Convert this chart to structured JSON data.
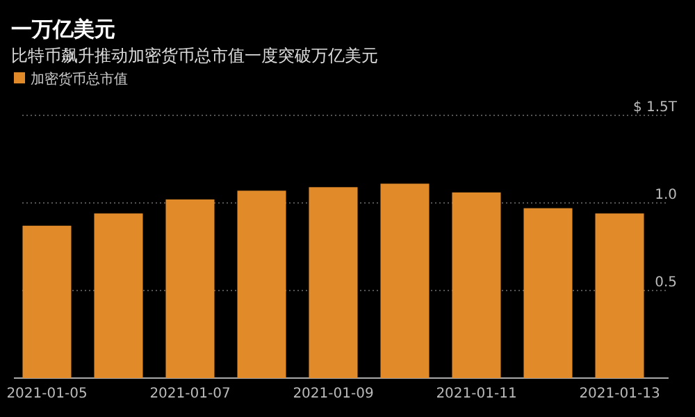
{
  "chart_data": {
    "type": "bar",
    "title": "一万亿美元",
    "subtitle": "比特币飙升推动加密货币总市值一度突破万亿美元",
    "categories": [
      "2021-01-05",
      null,
      "2021-01-07",
      null,
      "2021-01-09",
      null,
      "2021-01-11",
      null,
      "2021-01-13"
    ],
    "series": [
      {
        "name": "加密货币总市值",
        "color": "#e08a2a",
        "values": [
          0.87,
          0.94,
          1.02,
          1.07,
          1.09,
          1.11,
          1.06,
          0.97,
          0.94
        ]
      }
    ],
    "ylim": [
      0,
      1.5
    ],
    "yticks": [
      {
        "value": 0,
        "label": null
      },
      0.5,
      {
        "value": 1,
        "label": "1.0"
      },
      {
        "value": 1.5,
        "label": "$ 1.5T"
      }
    ],
    "grid": "y",
    "legend": "top left"
  }
}
